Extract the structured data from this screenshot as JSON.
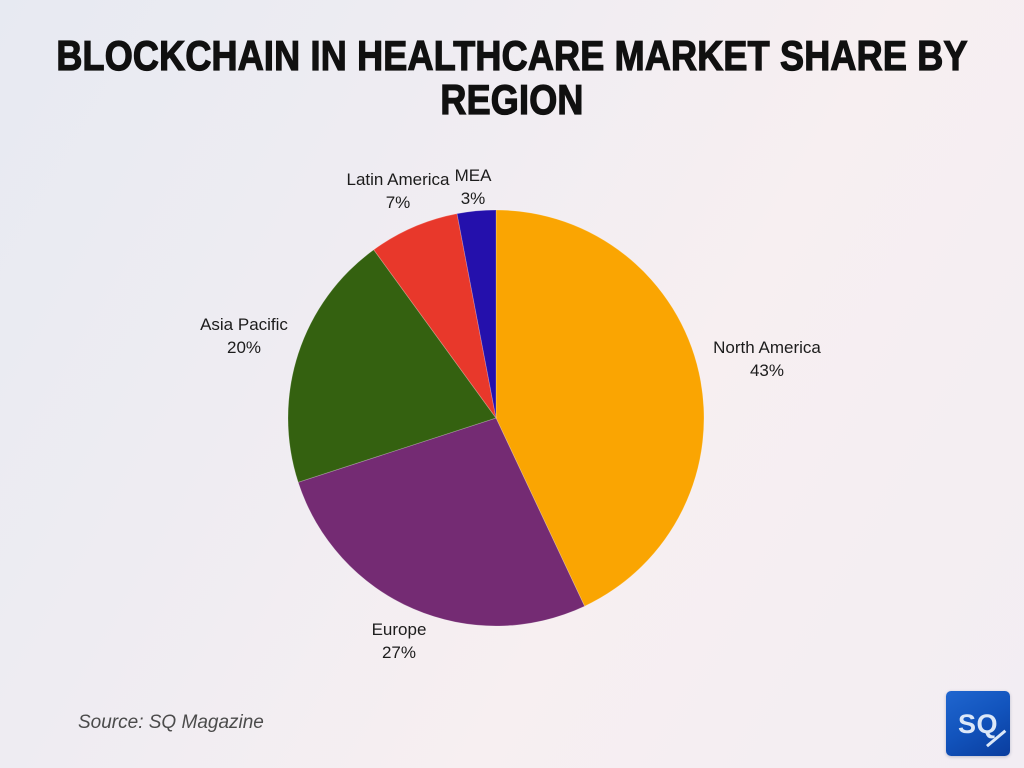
{
  "header": {
    "title": "BLOCKCHAIN IN HEALTHCARE MARKET SHARE BY\nREGION"
  },
  "chart_data": {
    "type": "pie",
    "title": "BLOCKCHAIN IN HEALTHCARE MARKET SHARE BY REGION",
    "direction": "clockwise",
    "start_angle_deg": 0,
    "legend_position": "none (direct slice labels)",
    "segments": [
      {
        "label": "North America",
        "value": 43,
        "pct_label": "43%",
        "color": "#FAA502"
      },
      {
        "label": "Europe",
        "value": 27,
        "pct_label": "27%",
        "color": "#742B73"
      },
      {
        "label": "Asia Pacific",
        "value": 20,
        "pct_label": "20%",
        "color": "#346110"
      },
      {
        "label": "Latin America",
        "value": 7,
        "pct_label": "7%",
        "color": "#E8382B"
      },
      {
        "label": "MEA",
        "value": 3,
        "pct_label": "3%",
        "color": "#2410AC"
      }
    ],
    "source": "Source: SQ Magazine"
  },
  "logo": {
    "text": "SQ",
    "background_color": "#1254BD"
  }
}
